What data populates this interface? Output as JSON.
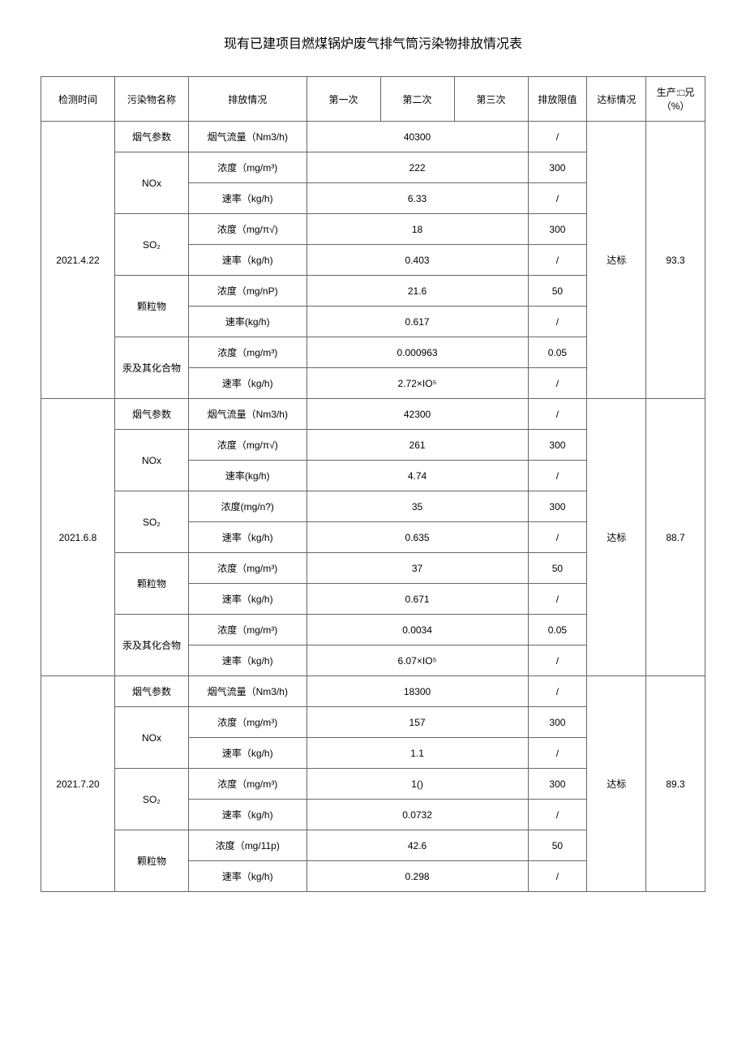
{
  "title": "现有已建项目燃煤锅炉废气排气筒污染物排放情况表",
  "headers": {
    "date": "检测时间",
    "pollutant": "污染物名称",
    "emission": "排放情况",
    "first": "第一次",
    "second": "第二次",
    "third": "第三次",
    "limit": "排放限值",
    "status": "达标情况",
    "production": "生产:□兄\n（%）"
  },
  "labels": {
    "smoke_param": "烟气参数",
    "smoke_flow": "烟气流量（Nm3/h)",
    "nox": "NOx",
    "so2": "SO₂",
    "particles": "颗粒物",
    "mercury": "汞及其化合物",
    "concentration_mgm3": "浓度（mg/m³)",
    "concentration_mgpi": "浓度（mg/π√)",
    "concentration_mgnp": "浓度（mg/nP)",
    "concentration_mgn": "浓度(mg/n?)",
    "concentration_mg11p": "浓度（mg/11p)",
    "rate_kgh": "速率（kg/h)",
    "rate_kgh2": "速率(kg/h)",
    "status_ok": "达标"
  },
  "rows": {
    "r1": {
      "date": "2021.4.22",
      "smoke_flow": "40300",
      "nox_conc": "222",
      "nox_rate": "6.33",
      "so2_conc": "18",
      "so2_rate": "0.403",
      "part_conc": "21.6",
      "part_rate": "0.617",
      "merc_conc": "0.000963",
      "merc_rate": "2.72×IO⁵",
      "limit_300": "300",
      "limit_50": "50",
      "limit_005": "0.05",
      "limit_slash": "/",
      "status": "达标",
      "production": "93.3"
    },
    "r2": {
      "date": "2021.6.8",
      "smoke_flow": "42300",
      "nox_conc": "261",
      "nox_rate": "4.74",
      "so2_conc": "35",
      "so2_rate": "0.635",
      "part_conc": "37",
      "part_rate": "0.671",
      "merc_conc": "0.0034",
      "merc_rate": "6.07×IO⁵",
      "status": "达标",
      "production": "88.7"
    },
    "r3": {
      "date": "2021.7.20",
      "smoke_flow": "18300",
      "nox_conc": "157",
      "nox_rate": "1.1",
      "so2_conc": "1()",
      "so2_rate": "0.0732",
      "part_conc": "42.6",
      "part_rate": "0.298",
      "status": "达标",
      "production": "89.3"
    }
  }
}
